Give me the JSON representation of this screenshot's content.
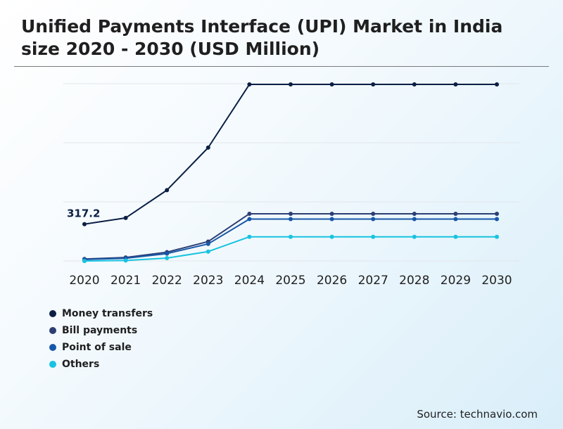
{
  "header": {
    "title": "Unified Payments Interface (UPI) Market in India size 2020 - 2030 (USD Million)"
  },
  "footer": {
    "source": "Source: technavio.com"
  },
  "chart_data": {
    "type": "line",
    "title": "Unified Payments Interface (UPI) Market in India size 2020 - 2030 (USD Million)",
    "xlabel": "",
    "ylabel": "",
    "grid": true,
    "legend_position": "bottom-left",
    "categories": [
      "2020",
      "2021",
      "2022",
      "2023",
      "2024",
      "2025",
      "2026",
      "2027",
      "2028",
      "2029",
      "2030"
    ],
    "ylim": [
      0,
      1500
    ],
    "y_gridlines": [
      0,
      500,
      1000,
      1500
    ],
    "series": [
      {
        "name": "Money transfers",
        "color": "#0b1f45",
        "values": [
          317.2,
          370,
          605,
          965,
          1500,
          1500,
          1500,
          1500,
          1500,
          1500,
          1500
        ]
      },
      {
        "name": "Bill payments",
        "color": "#2c3e75",
        "values": [
          22,
          35,
          80,
          170,
          405,
          405,
          405,
          405,
          405,
          405,
          405
        ]
      },
      {
        "name": "Point of sale",
        "color": "#1757a8",
        "values": [
          18,
          28,
          68,
          150,
          360,
          360,
          360,
          360,
          360,
          360,
          360
        ]
      },
      {
        "name": "Others",
        "color": "#17c3e0",
        "values": [
          5,
          10,
          30,
          85,
          210,
          210,
          210,
          210,
          210,
          210,
          210
        ]
      }
    ],
    "annotations": [
      {
        "series": "Money transfers",
        "category": "2020",
        "text": "317.2"
      }
    ]
  }
}
